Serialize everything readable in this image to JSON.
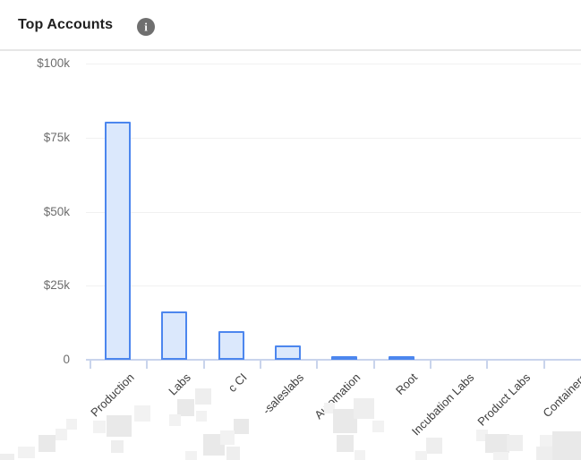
{
  "header": {
    "title": "Top Accounts",
    "info_glyph": "i"
  },
  "chart_data": {
    "type": "bar",
    "title": "Top Accounts",
    "categories": [
      "Production",
      "Labs",
      "c CI",
      "-saleslabs",
      "Automation",
      "Root",
      "Incubation Labs",
      "Product Labs",
      "Containers"
    ],
    "values": [
      80000,
      16000,
      9500,
      4500,
      1000,
      1000,
      0,
      0,
      0
    ],
    "y_tick_labels": [
      "$100k",
      "$75k",
      "$50k",
      "$25k",
      "0"
    ],
    "y_tick_values": [
      100000,
      75000,
      50000,
      25000,
      0
    ],
    "ylim": [
      0,
      100000
    ],
    "xlabel": "",
    "ylabel": "",
    "grid": "horizontal-only",
    "legend_position": "none",
    "redaction_note": "Several x-axis label prefixes and areas below labels are pixelated/redacted"
  },
  "colors": {
    "bar_fill": "#dbe8fc",
    "bar_border": "#4c86ee",
    "axis_line": "#c9d4ec",
    "gridline": "#f1f1f1",
    "title_text": "#1f1f1f",
    "y_label_text": "#6e6e6e",
    "x_label_text": "#3e3e3e",
    "info_icon_bg": "#6f6f6f",
    "divider": "#e6e6e6",
    "redaction_light": "#f2f2f2",
    "redaction_dark": "#e9e9e9",
    "redaction_mid": "#eeeeee"
  }
}
